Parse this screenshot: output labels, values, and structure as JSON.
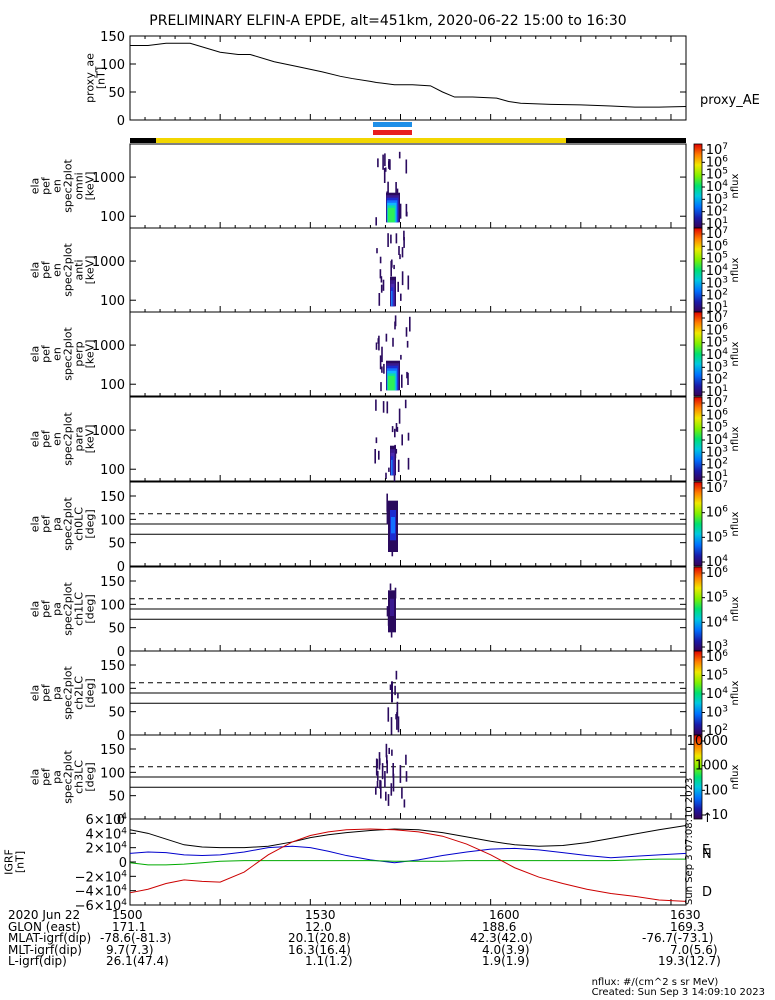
{
  "title": "PRELIMINARY ELFIN-A EPDE, alt=451km, 2020-06-22 15:00 to 16:30",
  "chart_data": [
    {
      "type": "line",
      "name": "proxy_ae",
      "ylabel": "proxy_ae [nT]",
      "right_label": "proxy_AE",
      "ylim": [
        0,
        150
      ],
      "yticks": [
        "150",
        "100",
        "50",
        "0"
      ],
      "x_minutes": [
        0,
        6,
        12,
        20,
        30,
        36,
        40,
        48,
        56,
        64,
        70,
        74,
        80,
        82,
        88,
        94,
        100,
        104,
        108,
        114,
        122,
        126,
        130,
        140,
        150,
        160,
        168,
        176,
        185
      ],
      "values": [
        133,
        133,
        137,
        137,
        121,
        117,
        117,
        104,
        95,
        86,
        78,
        74,
        69,
        67,
        63,
        63,
        61,
        50,
        41,
        41,
        39,
        33,
        30,
        28,
        27,
        25,
        23,
        23,
        24
      ]
    },
    {
      "type": "heatmap",
      "name": "ela pef en spec2plot omni",
      "ylabel": "ela pef en spec2plot omni [keV]",
      "yscale": "log",
      "ylim": [
        50,
        7000
      ],
      "yticks": [
        "1000",
        "100"
      ],
      "colorbar": {
        "label": "nflux",
        "ticks": [
          "10^7",
          "10^6",
          "10^5",
          "10^4",
          "10^3",
          "10^2",
          "10^1"
        ]
      },
      "active_window": [
        "15:46",
        "15:50"
      ]
    },
    {
      "type": "heatmap",
      "name": "ela pef en spec2plot anti",
      "ylabel": "ela pef en spec2plot anti [keV]",
      "yscale": "log",
      "ylim": [
        50,
        7000
      ],
      "yticks": [
        "1000",
        "100"
      ],
      "colorbar": {
        "label": "nflux",
        "ticks": [
          "10^7",
          "10^6",
          "10^5",
          "10^4",
          "10^3",
          "10^2",
          "10^1"
        ]
      },
      "active_window": [
        "15:46",
        "15:50"
      ]
    },
    {
      "type": "heatmap",
      "name": "ela pef en spec2plot perp",
      "ylabel": "ela pef en spec2plot perp [keV]",
      "yscale": "log",
      "ylim": [
        50,
        7000
      ],
      "yticks": [
        "1000",
        "100"
      ],
      "colorbar": {
        "label": "nflux",
        "ticks": [
          "10^7",
          "10^6",
          "10^5",
          "10^4",
          "10^3",
          "10^2",
          "10^1"
        ]
      },
      "active_window": [
        "15:46",
        "15:50"
      ]
    },
    {
      "type": "heatmap",
      "name": "ela pef en spec2plot para",
      "ylabel": "ela pef en spec2plot para [keV]",
      "yscale": "log",
      "ylim": [
        50,
        7000
      ],
      "yticks": [
        "1000",
        "100"
      ],
      "colorbar": {
        "label": "nflux",
        "ticks": [
          "10^7",
          "10^6",
          "10^5",
          "10^4",
          "10^3",
          "10^2",
          "10^1"
        ]
      },
      "active_window": [
        "15:46",
        "15:50"
      ]
    },
    {
      "type": "heatmap",
      "name": "ela pef pa spec2plot ch0LC",
      "ylabel": "ela pef pa spec2plot ch0LC [deg]",
      "ylim": [
        0,
        180
      ],
      "yticks": [
        "150",
        "100",
        "50",
        "0"
      ],
      "colorbar": {
        "label": "nflux",
        "ticks": [
          "10^7",
          "10^6",
          "10^5",
          "10^4"
        ]
      },
      "active_window": [
        "15:47",
        "15:48"
      ]
    },
    {
      "type": "heatmap",
      "name": "ela pef pa spec2plot ch1LC",
      "ylabel": "ela pef pa spec2plot ch1LC [deg]",
      "ylim": [
        0,
        180
      ],
      "yticks": [
        "150",
        "100",
        "50",
        "0"
      ],
      "colorbar": {
        "label": "nflux",
        "ticks": [
          "10^6",
          "10^5",
          "10^4",
          "10^3"
        ]
      },
      "active_window": [
        "15:47",
        "15:48"
      ]
    },
    {
      "type": "heatmap",
      "name": "ela pef pa spec2plot ch2LC",
      "ylabel": "ela pef pa spec2plot ch2LC [deg]",
      "ylim": [
        0,
        180
      ],
      "yticks": [
        "150",
        "100",
        "50",
        "0"
      ],
      "colorbar": {
        "label": "nflux",
        "ticks": [
          "10^6",
          "10^5",
          "10^4",
          "10^3",
          "10^2"
        ]
      },
      "active_window": [
        "15:46",
        "15:48"
      ]
    },
    {
      "type": "heatmap",
      "name": "ela pef pa spec2plot ch3LC",
      "ylabel": "ela pef pa spec2plot ch3LC [deg]",
      "ylim": [
        0,
        180
      ],
      "yticks": [
        "150",
        "100",
        "50",
        "0"
      ],
      "colorbar": {
        "label": "nflux",
        "ticks": [
          "10000",
          "1000",
          "100",
          "10"
        ]
      },
      "active_window": [
        "15:46",
        "15:50"
      ]
    },
    {
      "type": "line",
      "name": "IGRF",
      "ylabel": "IGRF [nT]",
      "ylim": [
        -60000,
        60000
      ],
      "yticks": [
        "6×10^4",
        "4×10^4",
        "2×10^4",
        "0",
        "−2×10^4",
        "−4×10^4",
        "−6×10^4"
      ],
      "side_note": "Sun Sep  3 07:08:10 2023",
      "series": [
        {
          "name": "",
          "color": "#000000",
          "x_minutes": [
            0,
            6,
            12,
            18,
            24,
            30,
            38,
            46,
            54,
            60,
            66,
            72,
            80,
            88,
            96,
            104,
            112,
            120,
            128,
            136,
            144,
            152,
            160,
            168,
            176,
            185
          ],
          "values": [
            45,
            40,
            32,
            24,
            21,
            20,
            20,
            22,
            28,
            34,
            38,
            41,
            44,
            46,
            45,
            41,
            35,
            29,
            24,
            22,
            23,
            27,
            33,
            39,
            45,
            51
          ]
        },
        {
          "name": "",
          "color": "#0000cc",
          "x_minutes": [
            0,
            6,
            12,
            18,
            24,
            30,
            38,
            46,
            54,
            60,
            66,
            72,
            80,
            88,
            96,
            104,
            112,
            120,
            128,
            136,
            144,
            152,
            160,
            168,
            176,
            185
          ],
          "values": [
            12,
            14,
            13,
            10,
            9,
            10,
            14,
            20,
            22,
            20,
            15,
            9,
            3,
            -1,
            3,
            9,
            14,
            18,
            19,
            17,
            13,
            9,
            6,
            8,
            10,
            12
          ]
        },
        {
          "name": "",
          "color": "#00aa00",
          "x_minutes": [
            0,
            6,
            12,
            18,
            24,
            30,
            38,
            46,
            54,
            60,
            66,
            72,
            80,
            88,
            96,
            104,
            112,
            120,
            128,
            136,
            144,
            152,
            160,
            168,
            176,
            185
          ],
          "values": [
            -1,
            -4,
            -4,
            -3,
            -1,
            1,
            2,
            2,
            2,
            2,
            2,
            2,
            2,
            1,
            1,
            1,
            2,
            2,
            2,
            2,
            2,
            2,
            2,
            3,
            4,
            4
          ]
        },
        {
          "name": "",
          "color": "#cc0000",
          "x_minutes": [
            0,
            6,
            12,
            18,
            24,
            30,
            38,
            46,
            54,
            60,
            66,
            72,
            80,
            88,
            96,
            104,
            112,
            120,
            128,
            136,
            144,
            152,
            160,
            168,
            176,
            185
          ],
          "values": [
            -43,
            -38,
            -30,
            -25,
            -27,
            -28,
            -14,
            10,
            28,
            37,
            42,
            45,
            46,
            45,
            42,
            36,
            25,
            10,
            -8,
            -21,
            -30,
            -38,
            -44,
            -48,
            -53,
            -55
          ]
        }
      ],
      "end_labels": [
        {
          "text": "↑",
          "color": "#000000"
        },
        {
          "text": "E",
          "color": "#00aa00"
        },
        {
          "text": "N",
          "color": "#0000cc"
        },
        {
          "text": "D",
          "color": "#cc0000"
        }
      ]
    }
  ],
  "footer": {
    "date_label": "2020 Jun 22",
    "time_ticks": [
      "1500",
      "1530",
      "1600",
      "1630"
    ],
    "rows": [
      {
        "label": "GLON (east)",
        "values": [
          "171.1",
          "12.0",
          "188.6",
          "169.3"
        ]
      },
      {
        "label": "MLAT-igrf(dip)",
        "values": [
          "-78.6(-81.3)",
          "20.1(20.8)",
          "42.3(42.0)",
          "-76.7(-73.1)"
        ]
      },
      {
        "label": "MLT-igrf(dip)",
        "values": "9.7(7.3)|16.3(16.4)|4.0(3.9)|7.0(5.6)"
      },
      {
        "label": "L-igrf(dip)",
        "values": [
          "26.1(47.4)",
          "1.1(1.2)",
          "1.9(1.9)",
          "19.3(12.7)"
        ]
      }
    ],
    "nflux_units": "nflux: #/(cm^2 s sr MeV)",
    "created": "Created: Sun Sep  3 14:09:10 2023"
  }
}
